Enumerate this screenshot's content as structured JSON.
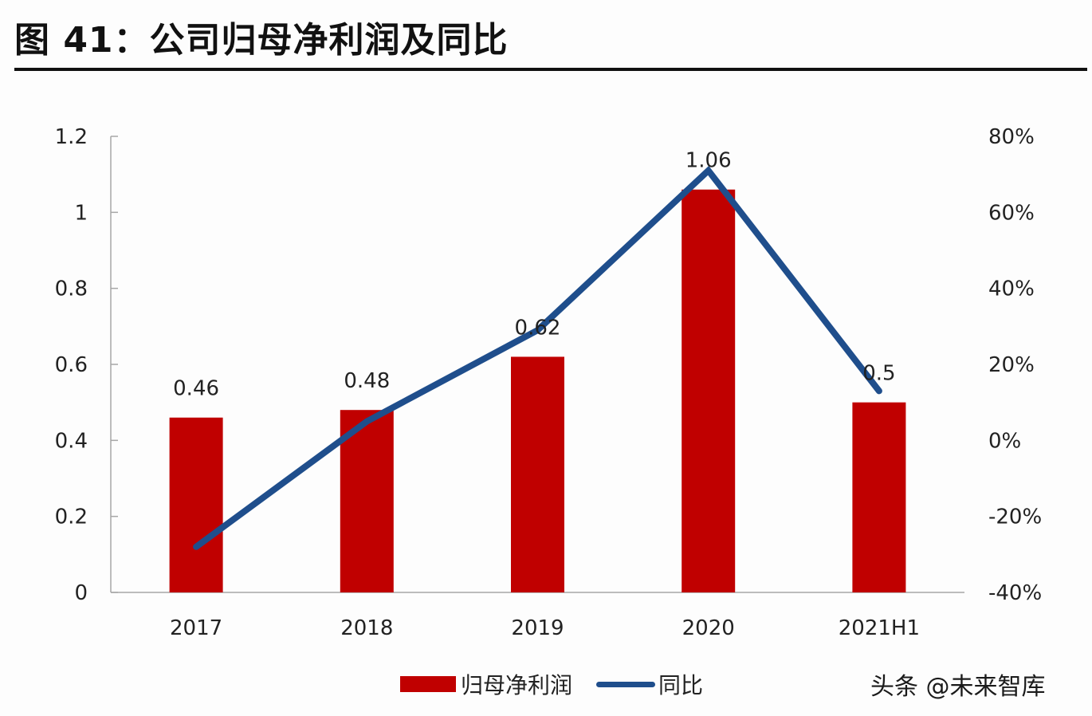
{
  "header": {
    "title": "图 41：公司归母净利润及同比"
  },
  "chart_data": {
    "type": "bar+line",
    "title": "图 41：公司归母净利润及同比",
    "categories": [
      "2017",
      "2018",
      "2019",
      "2020",
      "2021H1"
    ],
    "series": [
      {
        "name": "归母净利润",
        "type": "bar",
        "axis": "left",
        "color": "#c00000",
        "values": [
          0.46,
          0.48,
          0.62,
          1.06,
          0.5
        ],
        "data_labels": [
          "0.46",
          "0.48",
          "0.62",
          "1.06",
          "0.5"
        ]
      },
      {
        "name": "同比",
        "type": "line",
        "axis": "right",
        "color": "#1f4e8c",
        "values": [
          -28,
          5,
          29,
          71,
          13
        ]
      }
    ],
    "y_left": {
      "range": [
        0,
        1.2
      ],
      "ticks": [
        0,
        0.2,
        0.4,
        0.6,
        0.8,
        1.0,
        1.2
      ],
      "tick_labels": [
        "0",
        "0.2",
        "0.4",
        "0.6",
        "0.8",
        "1",
        "1.2"
      ]
    },
    "y_right": {
      "range": [
        -40,
        80
      ],
      "unit": "%",
      "ticks": [
        -40,
        -20,
        0,
        20,
        40,
        60,
        80
      ],
      "tick_labels": [
        "-40%",
        "-20%",
        "0%",
        "20%",
        "40%",
        "60%",
        "80%"
      ]
    },
    "grid": false,
    "legend": {
      "placement": "bottom-center",
      "entries": [
        "归母净利润",
        "同比"
      ]
    }
  },
  "watermark": "头条 @未来智库"
}
